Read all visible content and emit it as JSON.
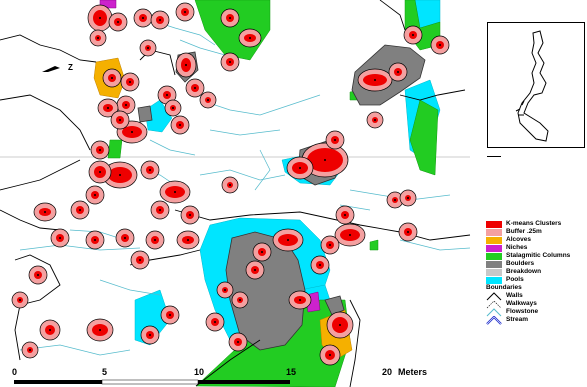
{
  "map": {
    "north_label": "Z",
    "scale_labels": [
      "0",
      "5",
      "10",
      "15",
      "20",
      "Meters"
    ]
  },
  "legend": {
    "items": [
      {
        "label": "K-means Clusters",
        "color": "#ee0000",
        "icon": "fill-swatch"
      },
      {
        "label": "Buffer .25m",
        "color": "#f4a0a0",
        "icon": "fill-swatch"
      },
      {
        "label": "Alcoves",
        "color": "#f5b000",
        "icon": "fill-swatch"
      },
      {
        "label": "Niches",
        "color": "#cc22cc",
        "icon": "fill-swatch"
      },
      {
        "label": "Stalagmitic Columns",
        "color": "#22cc22",
        "icon": "fill-swatch"
      },
      {
        "label": "Boulders",
        "color": "#808080",
        "icon": "fill-swatch"
      },
      {
        "label": "Breakdown",
        "color": "#c8c8c8",
        "icon": "fill-swatch"
      },
      {
        "label": "Pools",
        "color": "#00e5ff",
        "icon": "fill-swatch"
      }
    ],
    "boundaries_heading": "Boundaries",
    "line_items": [
      {
        "label": "Walls",
        "color": "#000000",
        "icon": "line-swatch"
      },
      {
        "label": "Walkways",
        "color": "#000000",
        "icon": "line-swatch"
      },
      {
        "label": "Flowstone",
        "color": "#55bbcc",
        "icon": "line-swatch"
      },
      {
        "label": "Stream",
        "color": "#1a2acc",
        "icon": "double-line-swatch"
      }
    ]
  }
}
